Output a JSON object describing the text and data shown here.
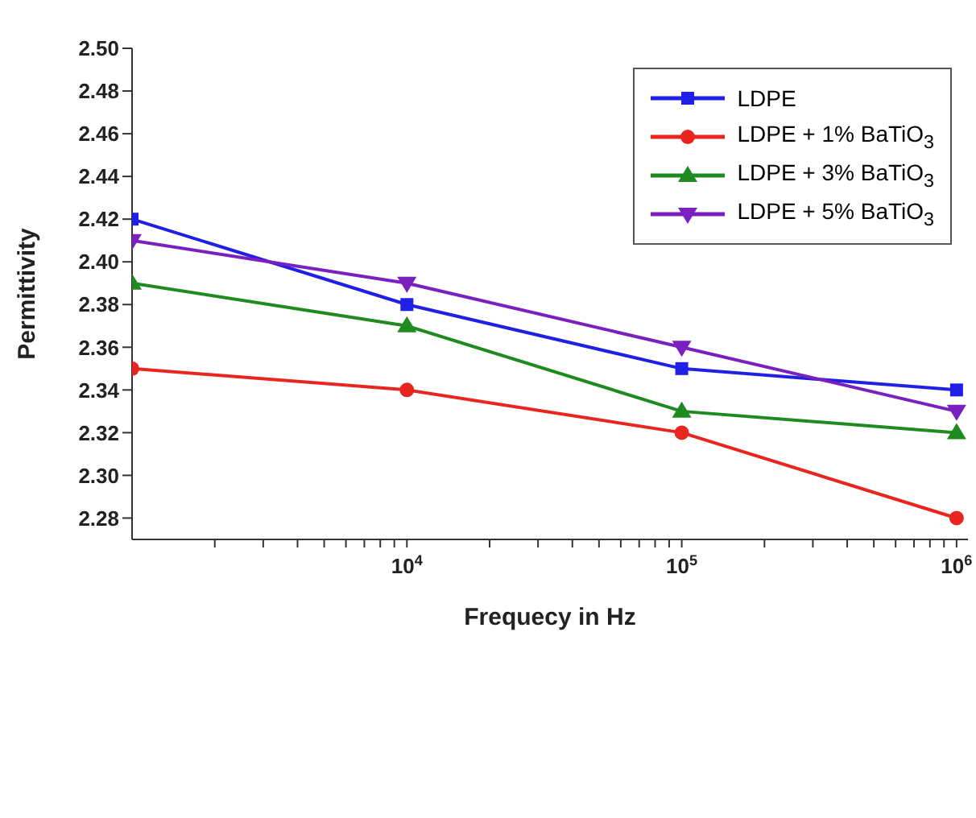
{
  "chart_data": {
    "type": "line",
    "xlabel": "Frequecy in Hz",
    "ylabel": "Permittivity",
    "log": "x",
    "x": [
      1000,
      10000,
      100000,
      1000000
    ],
    "xlim": [
      1000,
      1100000
    ],
    "xticks": [
      {
        "value": 2000,
        "label": null
      },
      {
        "value": 3000,
        "label": null
      },
      {
        "value": 4000,
        "label": null
      },
      {
        "value": 5000,
        "label": null
      },
      {
        "value": 6000,
        "label": null
      },
      {
        "value": 7000,
        "label": null
      },
      {
        "value": 8000,
        "label": null
      },
      {
        "value": 9000,
        "label": null
      },
      {
        "value": 10000,
        "label": "10$^{4}$"
      },
      {
        "value": 20000,
        "label": null
      },
      {
        "value": 30000,
        "label": null
      },
      {
        "value": 40000,
        "label": null
      },
      {
        "value": 50000,
        "label": null
      },
      {
        "value": 60000,
        "label": null
      },
      {
        "value": 70000,
        "label": null
      },
      {
        "value": 80000,
        "label": null
      },
      {
        "value": 90000,
        "label": null
      },
      {
        "value": 100000,
        "label": "10$^{5}$"
      },
      {
        "value": 200000,
        "label": null
      },
      {
        "value": 300000,
        "label": null
      },
      {
        "value": 400000,
        "label": null
      },
      {
        "value": 500000,
        "label": null
      },
      {
        "value": 600000,
        "label": null
      },
      {
        "value": 700000,
        "label": null
      },
      {
        "value": 800000,
        "label": null
      },
      {
        "value": 900000,
        "label": null
      },
      {
        "value": 1000000,
        "label": "10$^{6}$"
      }
    ],
    "ylim": [
      2.27,
      2.5
    ],
    "yticks": [
      2.28,
      {
        "value": 2.3,
        "label": "2.30"
      },
      2.32,
      2.34,
      2.36,
      2.38,
      {
        "value": 2.4,
        "label": "2.40"
      },
      2.42,
      2.44,
      2.46,
      2.48,
      {
        "value": 2.5,
        "label": "2.50"
      }
    ],
    "grid": false,
    "legend": "top right",
    "line_style": "solid",
    "series": [
      {
        "name": "LDPE",
        "color": "#1f1fe6",
        "marker": "square",
        "values": [
          2.42,
          2.38,
          2.35,
          2.34
        ]
      },
      {
        "name": "LDPE + 1% BaTiO$_{3}$",
        "color": "#e8251f",
        "marker": "circle",
        "values": [
          2.35,
          2.34,
          2.32,
          2.28
        ]
      },
      {
        "name": "LDPE + 3% BaTiO$_{3}$",
        "color": "#1f8a1f",
        "marker": "triangle",
        "values": [
          2.39,
          2.37,
          2.33,
          2.32
        ]
      },
      {
        "name": "LDPE + 5% BaTiO$_{3}$",
        "color": "#7a1fc0",
        "marker": "triangle-down",
        "values": [
          2.41,
          2.39,
          2.36,
          2.33
        ]
      }
    ]
  }
}
